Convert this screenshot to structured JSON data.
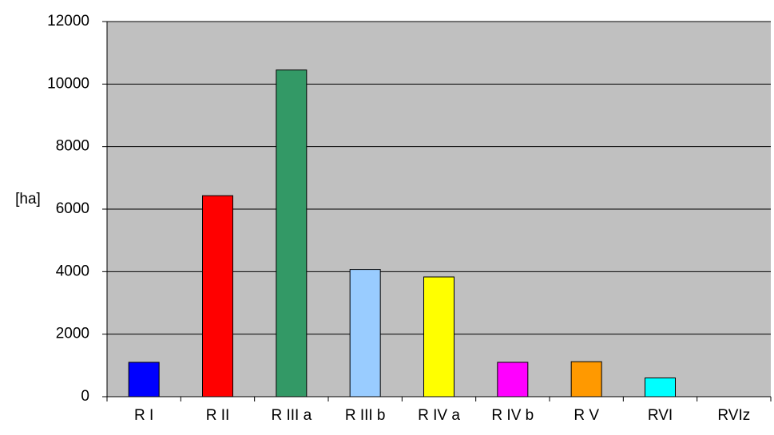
{
  "chart_data": {
    "type": "bar",
    "ylabel": "[ha]",
    "categories": [
      "R I",
      "R II",
      "R III a",
      "R III b",
      "R IV a",
      "R IV b",
      "R V",
      "RVI",
      "RVIz"
    ],
    "values": [
      1100,
      6430,
      10450,
      4070,
      3830,
      1100,
      1120,
      600,
      0
    ],
    "colors": [
      "#0000ff",
      "#ff0000",
      "#339966",
      "#99ccff",
      "#ffff00",
      "#ff00ff",
      "#ff9900",
      "#00ffff",
      "#808080"
    ],
    "ylim": [
      0,
      12000
    ],
    "yticks": [
      0,
      2000,
      4000,
      6000,
      8000,
      10000,
      12000
    ],
    "grid": true
  }
}
